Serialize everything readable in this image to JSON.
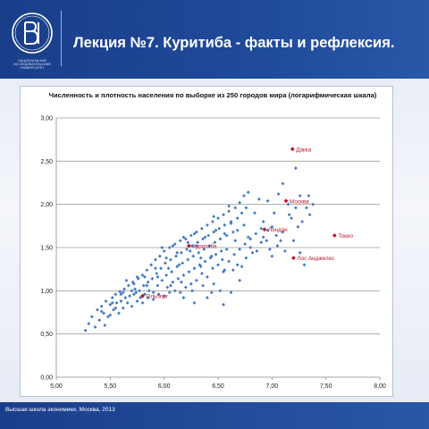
{
  "header": {
    "title": "Лекция №7. Куритиба - факты и рефлексия.",
    "logo_text": "НАЦИОНАЛЬНЫЙ ИССЛЕДОВАТЕЛЬСКИЙ УНИВЕРСИТЕТ"
  },
  "footer": {
    "text": "Высшая школа экономики, Москва, 2013"
  },
  "colors": {
    "header_bg": "#1f4a9a",
    "point": "#3f77c3",
    "highlight": "#c0122d"
  },
  "chart_data": {
    "type": "scatter",
    "title": "Численность и плотность населения по выборке из 250 городов мира (логарифмическая шкала)",
    "xlabel": "",
    "ylabel": "",
    "xlim": [
      5.0,
      8.0
    ],
    "ylim": [
      0.0,
      3.0
    ],
    "x_ticks": [
      "5,00",
      "5,50",
      "6,00",
      "6,50",
      "7,00",
      "7,50",
      "8,00"
    ],
    "y_ticks": [
      "0,00",
      "0,50",
      "1,00",
      "1,50",
      "2,00",
      "2,50",
      "3,00"
    ],
    "grid": "horizontal",
    "series": [
      {
        "values": [
          [
            5.27,
            0.54
          ],
          [
            5.3,
            0.62
          ],
          [
            5.33,
            0.7
          ],
          [
            5.36,
            0.58
          ],
          [
            5.38,
            0.78
          ],
          [
            5.4,
            0.66
          ],
          [
            5.42,
            0.82
          ],
          [
            5.44,
            0.74
          ],
          [
            5.46,
            0.88
          ],
          [
            5.48,
            0.7
          ],
          [
            5.5,
            0.84
          ],
          [
            5.52,
            0.92
          ],
          [
            5.53,
            0.78
          ],
          [
            5.55,
            0.96
          ],
          [
            5.56,
            0.86
          ],
          [
            5.58,
            0.74
          ],
          [
            5.59,
            0.99
          ],
          [
            5.6,
            0.88
          ],
          [
            5.62,
            0.8
          ],
          [
            5.63,
            1.02
          ],
          [
            5.64,
            0.92
          ],
          [
            5.66,
            0.86
          ],
          [
            5.67,
            1.06
          ],
          [
            5.68,
            0.94
          ],
          [
            5.7,
            0.82
          ],
          [
            5.71,
            1.1
          ],
          [
            5.72,
            0.96
          ],
          [
            5.73,
            1.02
          ],
          [
            5.75,
            0.88
          ],
          [
            5.76,
            1.14
          ],
          [
            5.77,
            1.0
          ],
          [
            5.78,
            0.92
          ],
          [
            5.8,
            1.18
          ],
          [
            5.81,
            1.06
          ],
          [
            5.82,
            0.96
          ],
          [
            5.84,
            1.24
          ],
          [
            5.85,
            1.1
          ],
          [
            5.86,
            1.0
          ],
          [
            5.88,
            1.3
          ],
          [
            5.89,
            1.14
          ],
          [
            5.9,
            0.98
          ],
          [
            5.92,
            1.36
          ],
          [
            5.93,
            1.2
          ],
          [
            5.94,
            1.06
          ],
          [
            5.96,
            1.4
          ],
          [
            5.97,
            1.26
          ],
          [
            5.98,
            1.12
          ],
          [
            6.0,
            1.46
          ],
          [
            6.01,
            1.32
          ],
          [
            6.02,
            1.18
          ],
          [
            6.03,
            1.04
          ],
          [
            6.05,
            1.5
          ],
          [
            6.06,
            1.36
          ],
          [
            6.07,
            1.22
          ],
          [
            6.08,
            1.1
          ],
          [
            6.1,
            1.54
          ],
          [
            6.11,
            1.4
          ],
          [
            6.12,
            1.28
          ],
          [
            6.13,
            1.14
          ],
          [
            6.15,
            1.58
          ],
          [
            6.16,
            1.44
          ],
          [
            6.17,
            1.32
          ],
          [
            6.18,
            1.18
          ],
          [
            6.2,
            1.6
          ],
          [
            6.21,
            1.48
          ],
          [
            6.22,
            1.36
          ],
          [
            6.23,
            1.22
          ],
          [
            6.25,
            1.64
          ],
          [
            6.26,
            1.52
          ],
          [
            6.27,
            1.4
          ],
          [
            6.28,
            1.26
          ],
          [
            6.3,
            1.68
          ],
          [
            6.31,
            1.56
          ],
          [
            6.32,
            1.44
          ],
          [
            6.33,
            1.3
          ],
          [
            6.35,
            1.72
          ],
          [
            6.36,
            1.6
          ],
          [
            6.37,
            1.48
          ],
          [
            6.38,
            1.34
          ],
          [
            6.4,
            1.76
          ],
          [
            6.41,
            1.64
          ],
          [
            6.42,
            1.52
          ],
          [
            6.43,
            1.38
          ],
          [
            6.45,
            1.8
          ],
          [
            6.46,
            1.68
          ],
          [
            6.47,
            1.56
          ],
          [
            6.48,
            1.42
          ],
          [
            6.5,
            1.84
          ],
          [
            6.51,
            1.72
          ],
          [
            6.52,
            1.6
          ],
          [
            6.53,
            1.46
          ],
          [
            6.55,
            1.88
          ],
          [
            6.56,
            1.76
          ],
          [
            6.58,
            1.64
          ],
          [
            6.6,
            1.92
          ],
          [
            6.62,
            1.8
          ],
          [
            6.64,
            1.68
          ],
          [
            6.66,
            1.96
          ],
          [
            6.68,
            1.84
          ],
          [
            6.7,
            2.02
          ],
          [
            6.72,
            1.9
          ],
          [
            6.74,
            2.1
          ],
          [
            6.76,
            1.96
          ],
          [
            6.78,
            2.14
          ],
          [
            5.45,
            0.6
          ],
          [
            5.5,
            0.72
          ],
          [
            5.55,
            0.8
          ],
          [
            5.6,
            0.96
          ],
          [
            5.65,
            1.12
          ],
          [
            5.7,
            1.0
          ],
          [
            5.75,
            1.16
          ],
          [
            5.8,
            0.86
          ],
          [
            5.85,
            0.92
          ],
          [
            5.9,
            0.9
          ],
          [
            5.95,
            0.96
          ],
          [
            6.0,
            0.94
          ],
          [
            6.05,
            0.98
          ],
          [
            6.1,
            1.0
          ],
          [
            6.15,
            0.98
          ],
          [
            6.2,
            1.04
          ],
          [
            6.25,
            1.08
          ],
          [
            6.3,
            1.12
          ],
          [
            6.35,
            1.2
          ],
          [
            6.4,
            1.16
          ],
          [
            6.45,
            1.26
          ],
          [
            6.5,
            1.3
          ],
          [
            6.55,
            1.22
          ],
          [
            6.6,
            1.34
          ],
          [
            6.65,
            1.42
          ],
          [
            6.7,
            1.48
          ],
          [
            6.75,
            1.54
          ],
          [
            6.8,
            1.6
          ],
          [
            6.85,
            1.66
          ],
          [
            6.9,
            1.72
          ],
          [
            6.95,
            1.58
          ],
          [
            7.0,
            1.4
          ],
          [
            6.18,
            0.92
          ],
          [
            6.28,
            0.86
          ],
          [
            6.4,
            0.92
          ],
          [
            6.55,
            0.84
          ],
          [
            6.62,
            0.98
          ],
          [
            6.72,
            1.28
          ],
          [
            6.82,
            1.44
          ],
          [
            6.92,
            1.8
          ],
          [
            7.02,
            1.9
          ],
          [
            7.05,
            1.52
          ],
          [
            7.1,
            1.68
          ],
          [
            7.12,
            1.46
          ],
          [
            7.15,
            2.0
          ],
          [
            7.18,
            1.84
          ],
          [
            7.2,
            1.58
          ],
          [
            7.22,
            1.96
          ],
          [
            7.24,
            1.74
          ],
          [
            7.26,
            1.44
          ],
          [
            7.28,
            1.8
          ],
          [
            7.3,
            1.3
          ],
          [
            7.32,
            1.96
          ],
          [
            7.34,
            2.1
          ],
          [
            7.35,
            1.88
          ],
          [
            7.38,
            2.0
          ],
          [
            6.84,
            1.9
          ],
          [
            6.88,
            2.06
          ],
          [
            6.96,
            2.04
          ],
          [
            7.06,
            2.12
          ],
          [
            7.1,
            2.24
          ],
          [
            7.16,
            1.88
          ],
          [
            7.22,
            2.42
          ],
          [
            7.26,
            2.1
          ],
          [
            6.92,
            1.62
          ],
          [
            6.96,
            1.7
          ],
          [
            7.0,
            1.74
          ],
          [
            7.04,
            1.64
          ],
          [
            6.86,
            1.46
          ],
          [
            6.78,
            1.62
          ],
          [
            6.66,
            1.58
          ],
          [
            6.58,
            1.48
          ],
          [
            6.44,
            1.4
          ],
          [
            6.34,
            1.38
          ],
          [
            6.24,
            1.46
          ],
          [
            6.14,
            1.3
          ],
          [
            6.04,
            1.26
          ],
          [
            5.94,
            1.16
          ],
          [
            5.84,
            1.06
          ],
          [
            5.74,
            0.98
          ],
          [
            6.74,
            1.76
          ],
          [
            6.68,
            1.7
          ],
          [
            6.62,
            1.78
          ],
          [
            6.56,
            1.66
          ],
          [
            6.48,
            1.7
          ],
          [
            6.38,
            1.62
          ],
          [
            6.3,
            1.52
          ],
          [
            6.22,
            1.56
          ],
          [
            6.12,
            1.44
          ],
          [
            6.02,
            1.38
          ],
          [
            5.92,
            1.26
          ],
          [
            5.82,
            1.16
          ],
          [
            5.72,
            1.08
          ],
          [
            5.62,
            0.98
          ],
          [
            5.52,
            0.86
          ],
          [
            5.42,
            0.76
          ],
          [
            6.46,
            1.08
          ],
          [
            6.52,
            1.0
          ],
          [
            6.36,
            1.06
          ],
          [
            6.26,
            1.0
          ],
          [
            6.16,
            1.1
          ],
          [
            6.06,
            1.06
          ],
          [
            6.44,
            0.98
          ],
          [
            6.34,
            1.28
          ],
          [
            6.54,
            1.36
          ],
          [
            6.64,
            1.24
          ],
          [
            6.7,
            1.12
          ],
          [
            6.76,
            1.38
          ],
          [
            6.8,
            1.5
          ],
          [
            6.9,
            1.56
          ],
          [
            6.98,
            1.48
          ],
          [
            7.08,
            1.58
          ],
          [
            6.68,
            1.3
          ],
          [
            6.56,
            1.24
          ],
          [
            5.98,
            1.5
          ],
          [
            6.08,
            1.52
          ],
          [
            6.18,
            1.62
          ],
          [
            6.28,
            1.66
          ],
          [
            6.46,
            1.86
          ],
          [
            6.6,
            1.98
          ]
        ]
      }
    ],
    "labels": [
      {
        "text": "Дакка",
        "x": 7.19,
        "y": 2.64
      },
      {
        "text": "Москва",
        "x": 7.13,
        "y": 2.04
      },
      {
        "text": "Лондон",
        "x": 6.93,
        "y": 1.71
      },
      {
        "text": "Токио",
        "x": 7.58,
        "y": 1.64
      },
      {
        "text": "Лос Анджелес",
        "x": 7.2,
        "y": 1.38
      },
      {
        "text": "Куритиба",
        "x": 6.23,
        "y": 1.52
      },
      {
        "text": "Ольборг",
        "x": 5.8,
        "y": 0.94
      }
    ]
  }
}
